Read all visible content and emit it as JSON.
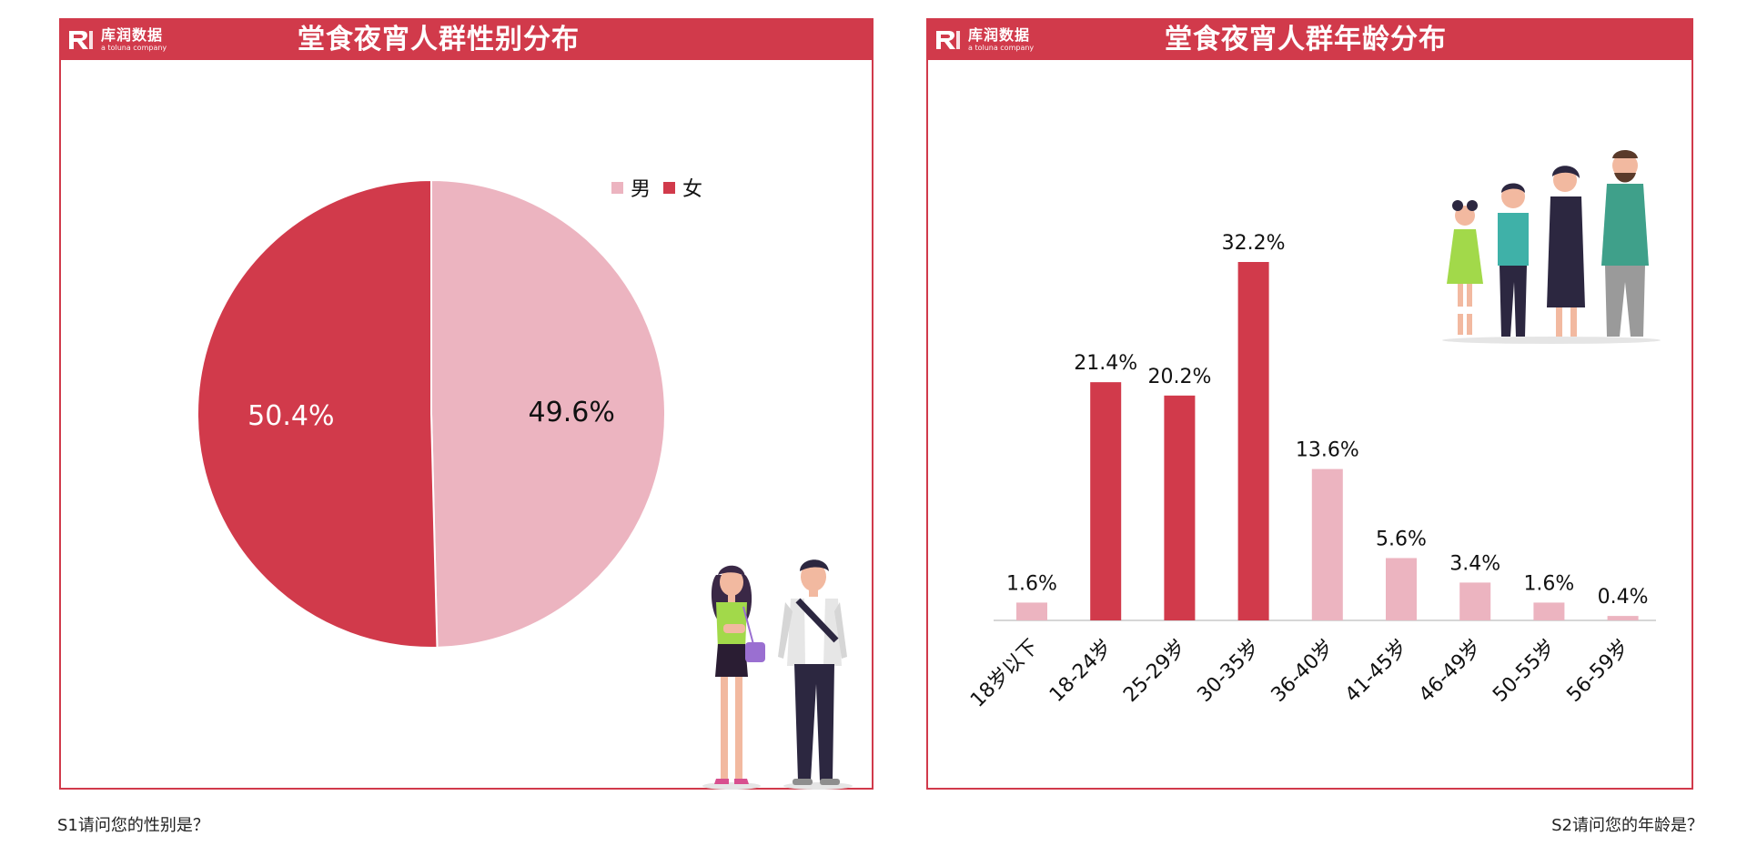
{
  "left_panel": {
    "title": "堂食夜宵人群性别分布",
    "logo_cn": "库润数据",
    "logo_en": "a toluna company",
    "question": "S1请问您的性别是？"
  },
  "right_panel": {
    "title": "堂食夜宵人群年龄分布",
    "logo_cn": "库润数据",
    "logo_en": "a toluna company",
    "question": "S2请问您的年龄是？"
  },
  "colors": {
    "brand": "#d13a4b",
    "female": "#d13a4b",
    "male": "#ecb4c0"
  },
  "chart_data": [
    {
      "type": "pie",
      "title": "堂食夜宵人群性别分布",
      "legend_position": "top-right",
      "slices": [
        {
          "label": "男",
          "value": 49.6,
          "display": "49.6%",
          "color": "#ecb4c0"
        },
        {
          "label": "女",
          "value": 50.4,
          "display": "50.4%",
          "color": "#d13a4b"
        }
      ]
    },
    {
      "type": "bar",
      "title": "堂食夜宵人群年龄分布",
      "categories": [
        "18岁以下",
        "18-24岁",
        "25-29岁",
        "30-35岁",
        "36-40岁",
        "41-45岁",
        "46-49岁",
        "50-55岁",
        "56-59岁"
      ],
      "values": [
        1.6,
        21.4,
        20.2,
        32.2,
        13.6,
        5.6,
        3.4,
        1.6,
        0.4
      ],
      "labels": [
        "1.6%",
        "21.4%",
        "20.2%",
        "32.2%",
        "13.6%",
        "5.6%",
        "3.4%",
        "1.6%",
        "0.4%"
      ],
      "highlight": [
        false,
        true,
        true,
        true,
        false,
        false,
        false,
        false,
        false
      ],
      "ylim": [
        0,
        32.2
      ],
      "grid": false,
      "xlabel": "",
      "ylabel": ""
    }
  ]
}
